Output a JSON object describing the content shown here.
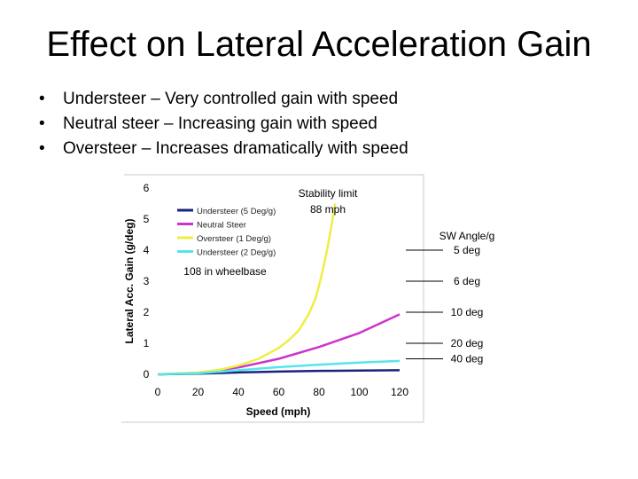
{
  "slide": {
    "title": "Effect on Lateral Acceleration Gain",
    "bullets": [
      "Understeer – Very controlled gain with speed",
      "Neutral steer – Increasing gain with speed",
      "Oversteer – Increases dramatically with speed"
    ],
    "bullet_glyph": "•"
  },
  "chart_data": {
    "type": "line",
    "xlabel": "Speed (mph)",
    "ylabel": "Lateral Acc. Gain (g/deg)",
    "xlim": [
      0,
      120
    ],
    "ylim": [
      0,
      6
    ],
    "xticks": [
      0,
      20,
      40,
      60,
      80,
      100,
      120
    ],
    "yticks": [
      0,
      1,
      2,
      3,
      4,
      5,
      6
    ],
    "grid": false,
    "legend_position": "top-left",
    "series": [
      {
        "name": "Understeer (5 Deg/g)",
        "color": "#1a237e",
        "x": [
          0,
          20,
          40,
          60,
          80,
          100,
          120
        ],
        "y": [
          0.0,
          0.02,
          0.06,
          0.09,
          0.11,
          0.12,
          0.13
        ]
      },
      {
        "name": "Neutral Steer",
        "color": "#cc33cc",
        "x": [
          0,
          20,
          40,
          60,
          80,
          100,
          120
        ],
        "y": [
          0.0,
          0.05,
          0.22,
          0.5,
          0.88,
          1.33,
          1.93
        ]
      },
      {
        "name": "Oversteer (1 Deg/g)",
        "color": "#eeee44",
        "x": [
          0,
          20,
          30,
          40,
          50,
          60,
          65,
          70,
          75,
          78,
          80,
          82,
          84,
          86,
          88
        ],
        "y": [
          0.0,
          0.06,
          0.14,
          0.28,
          0.5,
          0.85,
          1.1,
          1.42,
          1.95,
          2.4,
          2.85,
          3.4,
          4.0,
          4.7,
          5.5
        ]
      },
      {
        "name": "Understeer (2 Deg/g)",
        "color": "#55e5ee",
        "x": [
          0,
          20,
          40,
          60,
          80,
          100,
          120
        ],
        "y": [
          0.0,
          0.03,
          0.13,
          0.23,
          0.31,
          0.38,
          0.43
        ]
      }
    ],
    "annotations": {
      "stability_limit": [
        "Stability limit",
        "88 mph"
      ],
      "wheelbase": "108 in wheelbase",
      "sw_angle": [
        {
          "label": [
            "SW Angle/g",
            "5 deg"
          ],
          "target_y": 4.0
        },
        {
          "label": [
            "6 deg"
          ],
          "target_y": 3.0
        },
        {
          "label": [
            "10 deg"
          ],
          "target_y": 2.0
        },
        {
          "label": [
            "20 deg"
          ],
          "target_y": 1.0
        },
        {
          "label": [
            "40 deg"
          ],
          "target_y": 0.5
        }
      ]
    }
  }
}
